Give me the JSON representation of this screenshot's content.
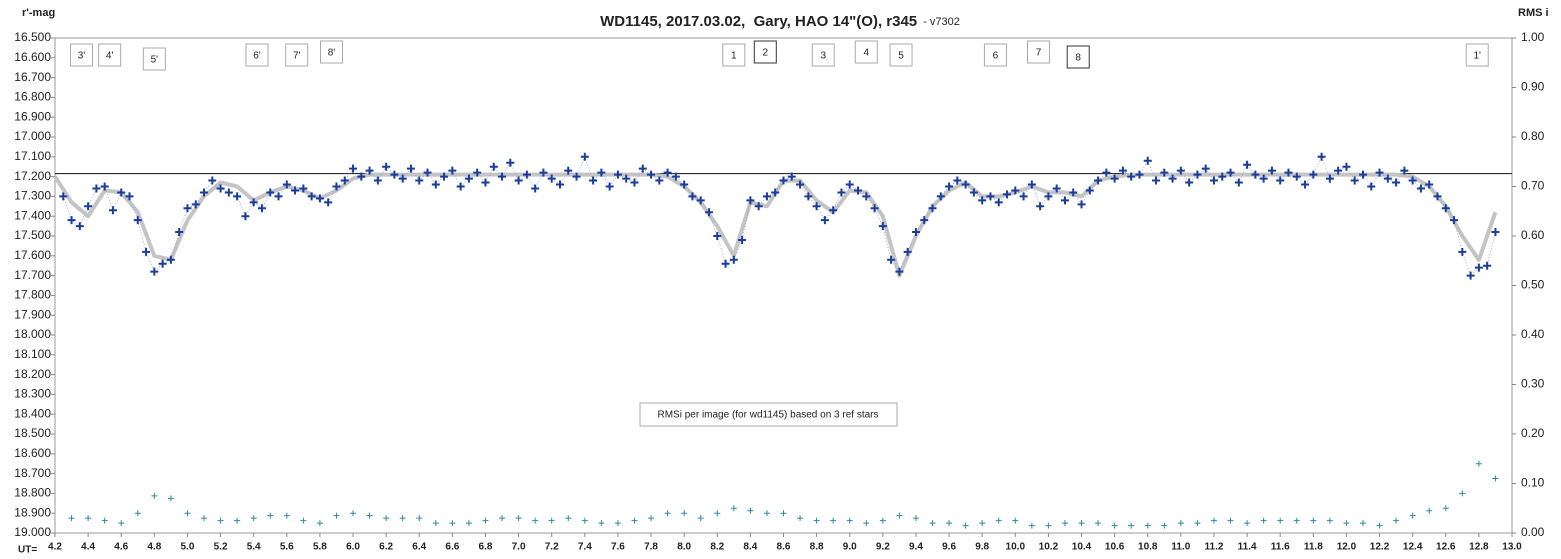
{
  "chart_data": {
    "type": "scatter",
    "title": "WD1145, 2017.03.02,  Gary, HAO 14\"(O), r345",
    "subtitle": "- v7302",
    "y_label": "r'-mag",
    "y2_label": "RMS i",
    "x_label": "UT=",
    "annotation": "RMSi per image (for wd1145) based on 3 ref stars",
    "y_inverted": true,
    "grid": false,
    "hline": 17.185,
    "xlim": [
      4.2,
      13.0
    ],
    "ylim": [
      16.5,
      19.0
    ],
    "y2lim": [
      0,
      1
    ],
    "xticks": [
      4.2,
      4.4,
      4.6,
      4.8,
      {
        "value": 5,
        "label": "5.0"
      },
      5.2,
      5.4,
      5.6,
      5.8,
      {
        "value": 6,
        "label": "6.0"
      },
      6.2,
      6.4,
      6.6,
      6.8,
      {
        "value": 7,
        "label": "7.0"
      },
      7.2,
      7.4,
      7.6,
      7.8,
      {
        "value": 8,
        "label": "8.0"
      },
      8.2,
      8.4,
      8.6,
      8.8,
      {
        "value": 9,
        "label": "9.0"
      },
      9.2,
      9.4,
      9.6,
      9.8,
      {
        "value": 10,
        "label": "10.0"
      },
      10.2,
      10.4,
      10.6,
      10.8,
      {
        "value": 11,
        "label": "11.0"
      },
      11.2,
      11.4,
      11.6,
      11.8,
      {
        "value": 12,
        "label": "12.0"
      },
      12.2,
      12.4,
      12.6,
      12.8,
      {
        "value": 13,
        "label": "13.0"
      }
    ],
    "yticks": [
      {
        "value": 16.5,
        "label": "16.500"
      },
      {
        "value": 16.6,
        "label": "16.600"
      },
      {
        "value": 16.7,
        "label": "16.700"
      },
      {
        "value": 16.8,
        "label": "16.800"
      },
      {
        "value": 16.9,
        "label": "16.900"
      },
      {
        "value": 17.0,
        "label": "17.000"
      },
      {
        "value": 17.1,
        "label": "17.100"
      },
      {
        "value": 17.2,
        "label": "17.200"
      },
      {
        "value": 17.3,
        "label": "17.300"
      },
      {
        "value": 17.4,
        "label": "17.400"
      },
      {
        "value": 17.5,
        "label": "17.500"
      },
      {
        "value": 17.6,
        "label": "17.600"
      },
      {
        "value": 17.7,
        "label": "17.700"
      },
      {
        "value": 17.8,
        "label": "17.800"
      },
      {
        "value": 17.9,
        "label": "17.900"
      },
      {
        "value": 18.0,
        "label": "18.000"
      },
      {
        "value": 18.1,
        "label": "18.100"
      },
      {
        "value": 18.2,
        "label": "18.200"
      },
      {
        "value": 18.3,
        "label": "18.300"
      },
      {
        "value": 18.4,
        "label": "18.400"
      },
      {
        "value": 18.5,
        "label": "18.500"
      },
      {
        "value": 18.6,
        "label": "18.600"
      },
      {
        "value": 18.7,
        "label": "18.700"
      },
      {
        "value": 18.8,
        "label": "18.800"
      },
      {
        "value": 18.9,
        "label": "18.900"
      },
      {
        "value": 19.0,
        "label": "19.000"
      }
    ],
    "y2ticks": [
      {
        "value": 0,
        "label": "0.00"
      },
      {
        "value": 0.1,
        "label": "0.10"
      },
      {
        "value": 0.2,
        "label": "0.20"
      },
      {
        "value": 0.3,
        "label": "0.30"
      },
      {
        "value": 0.4,
        "label": "0.40"
      },
      {
        "value": 0.5,
        "label": "0.50"
      },
      {
        "value": 0.6,
        "label": "0.60"
      },
      {
        "value": 0.7,
        "label": "0.70"
      },
      {
        "value": 0.8,
        "label": "0.80"
      },
      {
        "value": 0.9,
        "label": "0.90"
      },
      {
        "value": 1,
        "label": "1.00"
      }
    ],
    "events": [
      {
        "label": "3'",
        "x": 4.36
      },
      {
        "label": "4'",
        "x": 4.53
      },
      {
        "label": "5'",
        "x": 4.8
      },
      {
        "label": "6'",
        "x": 5.42
      },
      {
        "label": "7'",
        "x": 5.66
      },
      {
        "label": "8'",
        "x": 5.87
      },
      {
        "label": "1",
        "x": 8.3
      },
      {
        "label": "2",
        "x": 8.49
      },
      {
        "label": "3",
        "x": 8.84
      },
      {
        "label": "4",
        "x": 9.1
      },
      {
        "label": "5",
        "x": 9.31
      },
      {
        "label": "6",
        "x": 9.88
      },
      {
        "label": "7",
        "x": 10.14
      },
      {
        "label": "8",
        "x": 10.38
      },
      {
        "label": "1'",
        "x": 12.79
      }
    ],
    "series": [
      {
        "type": "scatter",
        "color": "#1a3d9c",
        "x": [
          4.25,
          4.3,
          4.35,
          4.4,
          4.45,
          4.5,
          4.55,
          4.6,
          4.65,
          4.7,
          4.75,
          4.8,
          4.85,
          4.9,
          4.95,
          5,
          5.05,
          5.1,
          5.15,
          5.2,
          5.25,
          5.3,
          5.35,
          5.4,
          5.45,
          5.5,
          5.55,
          5.6,
          5.65,
          5.7,
          5.75,
          5.8,
          5.85,
          5.9,
          5.95,
          6,
          6.05,
          6.1,
          6.15,
          6.2,
          6.25,
          6.3,
          6.35,
          6.4,
          6.45,
          6.5,
          6.55,
          6.6,
          6.65,
          6.7,
          6.75,
          6.8,
          6.85,
          6.9,
          6.95,
          7,
          7.05,
          7.1,
          7.15,
          7.2,
          7.25,
          7.3,
          7.35,
          7.4,
          7.45,
          7.5,
          7.55,
          7.6,
          7.65,
          7.7,
          7.75,
          7.8,
          7.85,
          7.9,
          7.95,
          8,
          8.05,
          8.1,
          8.15,
          8.2,
          8.25,
          8.3,
          8.35,
          8.4,
          8.45,
          8.5,
          8.55,
          8.6,
          8.65,
          8.7,
          8.75,
          8.8,
          8.85,
          8.9,
          8.95,
          9,
          9.05,
          9.1,
          9.15,
          9.2,
          9.25,
          9.3,
          9.35,
          9.4,
          9.45,
          9.5,
          9.55,
          9.6,
          9.65,
          9.7,
          9.75,
          9.8,
          9.85,
          9.9,
          9.95,
          10,
          10.05,
          10.1,
          10.15,
          10.2,
          10.25,
          10.3,
          10.35,
          10.4,
          10.45,
          10.5,
          10.55,
          10.6,
          10.65,
          10.7,
          10.75,
          10.8,
          10.85,
          10.9,
          10.95,
          11,
          11.05,
          11.1,
          11.15,
          11.2,
          11.25,
          11.3,
          11.35,
          11.4,
          11.45,
          11.5,
          11.55,
          11.6,
          11.65,
          11.7,
          11.75,
          11.8,
          11.85,
          11.9,
          11.95,
          12,
          12.05,
          12.1,
          12.15,
          12.2,
          12.25,
          12.3,
          12.35,
          12.4,
          12.45,
          12.5,
          12.55,
          12.6,
          12.65,
          12.7,
          12.75,
          12.8,
          12.85,
          12.9
        ],
        "values": [
          17.3,
          17.42,
          17.45,
          17.35,
          17.26,
          17.25,
          17.37,
          17.28,
          17.3,
          17.42,
          17.58,
          17.68,
          17.64,
          17.62,
          17.48,
          17.36,
          17.34,
          17.28,
          17.22,
          17.26,
          17.28,
          17.3,
          17.4,
          17.33,
          17.36,
          17.28,
          17.3,
          17.24,
          17.27,
          17.26,
          17.3,
          17.31,
          17.33,
          17.25,
          17.22,
          17.16,
          17.2,
          17.17,
          17.22,
          17.15,
          17.19,
          17.21,
          17.16,
          17.22,
          17.18,
          17.24,
          17.2,
          17.17,
          17.25,
          17.21,
          17.18,
          17.23,
          17.15,
          17.2,
          17.13,
          17.22,
          17.19,
          17.26,
          17.18,
          17.21,
          17.24,
          17.17,
          17.2,
          17.1,
          17.22,
          17.18,
          17.25,
          17.19,
          17.21,
          17.23,
          17.16,
          17.19,
          17.22,
          17.18,
          17.2,
          17.24,
          17.3,
          17.32,
          17.38,
          17.5,
          17.64,
          17.62,
          17.52,
          17.32,
          17.35,
          17.3,
          17.28,
          17.22,
          17.2,
          17.24,
          17.3,
          17.35,
          17.42,
          17.37,
          17.28,
          17.24,
          17.27,
          17.3,
          17.36,
          17.45,
          17.62,
          17.68,
          17.58,
          17.48,
          17.42,
          17.36,
          17.3,
          17.25,
          17.22,
          17.24,
          17.28,
          17.32,
          17.3,
          17.33,
          17.29,
          17.27,
          17.3,
          17.24,
          17.35,
          17.3,
          17.26,
          17.32,
          17.28,
          17.34,
          17.27,
          17.22,
          17.18,
          17.21,
          17.17,
          17.2,
          17.19,
          17.12,
          17.22,
          17.18,
          17.21,
          17.17,
          17.23,
          17.19,
          17.16,
          17.22,
          17.2,
          17.18,
          17.23,
          17.14,
          17.19,
          17.21,
          17.17,
          17.22,
          17.18,
          17.2,
          17.24,
          17.19,
          17.1,
          17.21,
          17.17,
          17.15,
          17.22,
          17.19,
          17.25,
          17.18,
          17.21,
          17.23,
          17.17,
          17.22,
          17.26,
          17.24,
          17.3,
          17.36,
          17.42,
          17.58,
          17.7,
          17.66,
          17.65,
          17.48
        ]
      },
      {
        "type": "line",
        "color": "#c4c4c4",
        "x": [
          4.2,
          4.3,
          4.4,
          4.5,
          4.6,
          4.7,
          4.8,
          4.9,
          5,
          5.1,
          5.2,
          5.3,
          5.4,
          5.5,
          5.6,
          5.7,
          5.8,
          5.9,
          6,
          6.1,
          6.2,
          6.3,
          6.4,
          6.5,
          6.6,
          6.7,
          6.8,
          6.9,
          7,
          7.1,
          7.2,
          7.3,
          7.4,
          7.5,
          7.6,
          7.7,
          7.8,
          7.9,
          8,
          8.1,
          8.2,
          8.3,
          8.4,
          8.5,
          8.6,
          8.7,
          8.8,
          8.9,
          9,
          9.1,
          9.2,
          9.3,
          9.4,
          9.5,
          9.6,
          9.7,
          9.8,
          9.9,
          10,
          10.1,
          10.2,
          10.3,
          10.4,
          10.5,
          10.6,
          10.7,
          10.8,
          10.9,
          11,
          11.1,
          11.2,
          11.3,
          11.4,
          11.5,
          11.6,
          11.7,
          11.8,
          11.9,
          12,
          12.1,
          12.2,
          12.3,
          12.4,
          12.5,
          12.6,
          12.7,
          12.8,
          12.9
        ],
        "values": [
          17.2,
          17.33,
          17.4,
          17.27,
          17.28,
          17.38,
          17.6,
          17.62,
          17.42,
          17.3,
          17.23,
          17.25,
          17.32,
          17.28,
          17.25,
          17.27,
          17.31,
          17.27,
          17.21,
          17.19,
          17.19,
          17.19,
          17.19,
          17.19,
          17.19,
          17.19,
          17.19,
          17.19,
          17.19,
          17.19,
          17.19,
          17.19,
          17.19,
          17.19,
          17.19,
          17.19,
          17.19,
          17.2,
          17.25,
          17.33,
          17.45,
          17.6,
          17.33,
          17.35,
          17.22,
          17.22,
          17.32,
          17.38,
          17.27,
          17.28,
          17.4,
          17.7,
          17.5,
          17.35,
          17.27,
          17.23,
          17.3,
          17.3,
          17.28,
          17.25,
          17.28,
          17.28,
          17.3,
          17.22,
          17.2,
          17.19,
          17.19,
          17.19,
          17.19,
          17.19,
          17.19,
          17.19,
          17.19,
          17.19,
          17.19,
          17.19,
          17.19,
          17.19,
          17.19,
          17.19,
          17.19,
          17.19,
          17.2,
          17.25,
          17.35,
          17.5,
          17.62,
          17.38
        ]
      },
      {
        "type": "scatter",
        "color": "#2e8b9b",
        "axis": "y2",
        "x": [
          4.3,
          4.4,
          4.5,
          4.6,
          4.7,
          4.8,
          4.9,
          5,
          5.1,
          5.2,
          5.3,
          5.4,
          5.5,
          5.6,
          5.7,
          5.8,
          5.9,
          6,
          6.1,
          6.2,
          6.3,
          6.4,
          6.5,
          6.6,
          6.7,
          6.8,
          6.9,
          7,
          7.1,
          7.2,
          7.3,
          7.4,
          7.5,
          7.6,
          7.7,
          7.8,
          7.9,
          8,
          8.1,
          8.2,
          8.3,
          8.4,
          8.5,
          8.6,
          8.7,
          8.8,
          8.9,
          9,
          9.1,
          9.2,
          9.3,
          9.4,
          9.5,
          9.6,
          9.7,
          9.8,
          9.9,
          10,
          10.1,
          10.2,
          10.3,
          10.4,
          10.5,
          10.6,
          10.7,
          10.8,
          10.9,
          11,
          11.1,
          11.2,
          11.3,
          11.4,
          11.5,
          11.6,
          11.7,
          11.8,
          11.9,
          12,
          12.1,
          12.2,
          12.3,
          12.4,
          12.5,
          12.6,
          12.7,
          12.8,
          12.9
        ],
        "values": [
          0.03,
          0.03,
          0.025,
          0.02,
          0.04,
          0.075,
          0.07,
          0.04,
          0.03,
          0.025,
          0.025,
          0.03,
          0.035,
          0.035,
          0.025,
          0.02,
          0.035,
          0.04,
          0.035,
          0.03,
          0.03,
          0.03,
          0.02,
          0.02,
          0.02,
          0.025,
          0.03,
          0.03,
          0.025,
          0.025,
          0.03,
          0.025,
          0.02,
          0.02,
          0.025,
          0.03,
          0.04,
          0.04,
          0.03,
          0.04,
          0.05,
          0.045,
          0.04,
          0.04,
          0.03,
          0.025,
          0.025,
          0.025,
          0.02,
          0.025,
          0.035,
          0.03,
          0.02,
          0.02,
          0.015,
          0.02,
          0.025,
          0.025,
          0.015,
          0.015,
          0.02,
          0.02,
          0.02,
          0.015,
          0.015,
          0.015,
          0.015,
          0.02,
          0.02,
          0.025,
          0.025,
          0.02,
          0.025,
          0.025,
          0.025,
          0.025,
          0.025,
          0.02,
          0.02,
          0.015,
          0.025,
          0.035,
          0.045,
          0.05,
          0.08,
          0.14,
          0.11
        ]
      }
    ]
  }
}
